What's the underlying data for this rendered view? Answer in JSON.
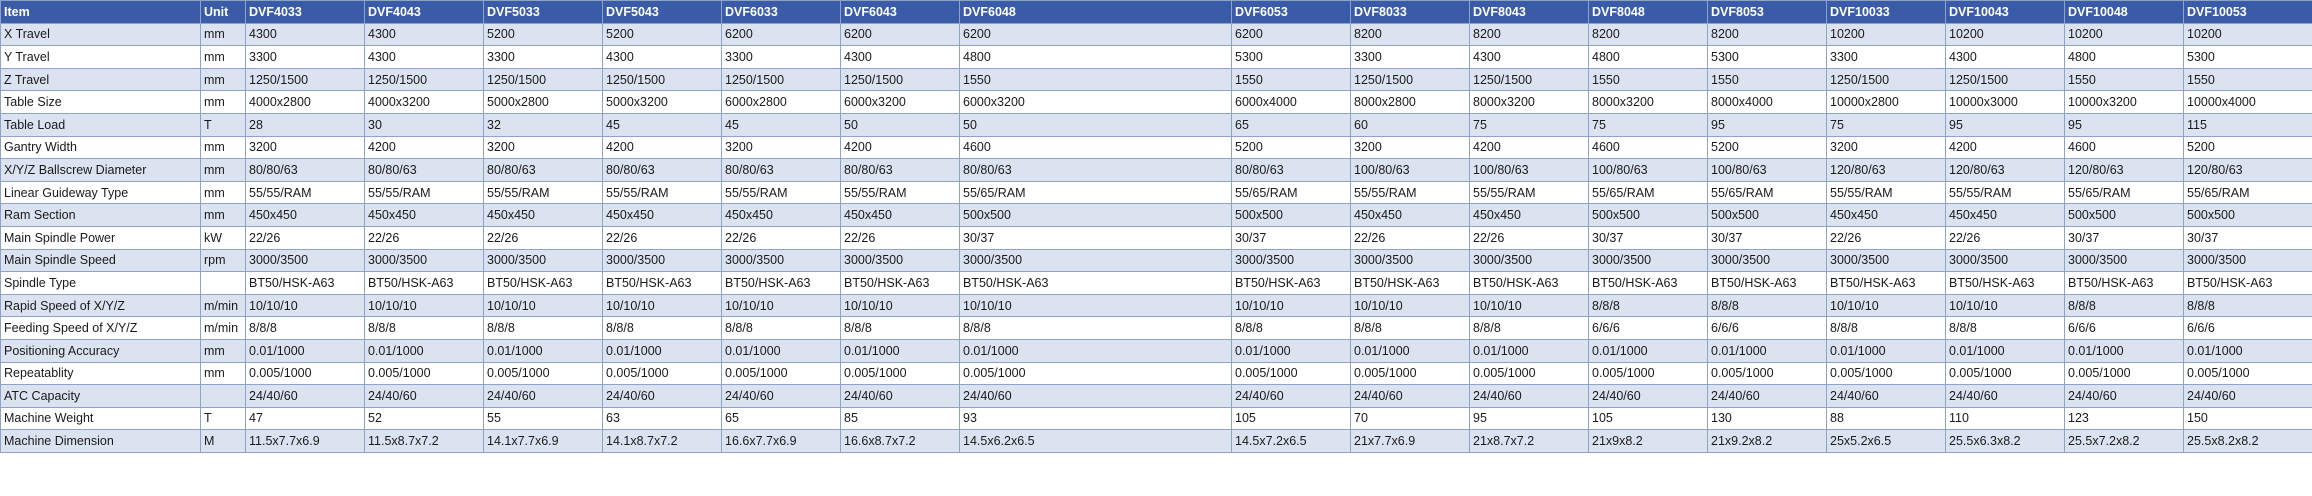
{
  "table": {
    "header": [
      "Item",
      "Unit",
      "DVF4033",
      "DVF4043",
      "DVF5033",
      "DVF5043",
      "DVF6033",
      "DVF6043",
      "DVF6048",
      "DVF6053",
      "DVF8033",
      "DVF8043",
      "DVF8048",
      "DVF8053",
      "DVF10033",
      "DVF10043",
      "DVF10048",
      "DVF10053"
    ],
    "rows": [
      [
        "X Travel",
        "mm",
        "4300",
        "4300",
        "5200",
        "5200",
        "6200",
        "6200",
        "6200",
        "6200",
        "8200",
        "8200",
        "8200",
        "8200",
        "10200",
        "10200",
        "10200",
        "10200"
      ],
      [
        "Y Travel",
        "mm",
        "3300",
        "4300",
        "3300",
        "4300",
        "3300",
        "4300",
        "4800",
        "5300",
        "3300",
        "4300",
        "4800",
        "5300",
        "3300",
        "4300",
        "4800",
        "5300"
      ],
      [
        "Z Travel",
        "mm",
        "1250/1500",
        "1250/1500",
        "1250/1500",
        "1250/1500",
        "1250/1500",
        "1250/1500",
        "1550",
        "1550",
        "1250/1500",
        "1250/1500",
        "1550",
        "1550",
        "1250/1500",
        "1250/1500",
        "1550",
        "1550"
      ],
      [
        "Table Size",
        "mm",
        "4000x2800",
        "4000x3200",
        "5000x2800",
        "5000x3200",
        "6000x2800",
        "6000x3200",
        "6000x3200",
        "6000x4000",
        "8000x2800",
        "8000x3200",
        "8000x3200",
        "8000x4000",
        "10000x2800",
        "10000x3000",
        "10000x3200",
        "10000x4000"
      ],
      [
        "Table Load",
        "T",
        "28",
        "30",
        "32",
        "45",
        "45",
        "50",
        "50",
        "65",
        "60",
        "75",
        "75",
        "95",
        "75",
        "95",
        "95",
        "115"
      ],
      [
        "Gantry Width",
        "mm",
        "3200",
        "4200",
        "3200",
        "4200",
        "3200",
        "4200",
        "4600",
        "5200",
        "3200",
        "4200",
        "4600",
        "5200",
        "3200",
        "4200",
        "4600",
        "5200"
      ],
      [
        "X/Y/Z Ballscrew Diameter",
        "mm",
        "80/80/63",
        "80/80/63",
        "80/80/63",
        "80/80/63",
        "80/80/63",
        "80/80/63",
        "80/80/63",
        "80/80/63",
        "100/80/63",
        "100/80/63",
        "100/80/63",
        "100/80/63",
        "120/80/63",
        "120/80/63",
        "120/80/63",
        "120/80/63"
      ],
      [
        "Linear Guideway Type",
        "mm",
        "55/55/RAM",
        "55/55/RAM",
        "55/55/RAM",
        "55/55/RAM",
        "55/55/RAM",
        "55/55/RAM",
        "55/65/RAM",
        "55/65/RAM",
        "55/55/RAM",
        "55/55/RAM",
        "55/65/RAM",
        "55/65/RAM",
        "55/55/RAM",
        "55/55/RAM",
        "55/65/RAM",
        "55/65/RAM"
      ],
      [
        "Ram Section",
        "mm",
        "450x450",
        "450x450",
        "450x450",
        "450x450",
        "450x450",
        "450x450",
        "500x500",
        "500x500",
        "450x450",
        "450x450",
        "500x500",
        "500x500",
        "450x450",
        "450x450",
        "500x500",
        "500x500"
      ],
      [
        "Main Spindle Power",
        "kW",
        "22/26",
        "22/26",
        "22/26",
        "22/26",
        "22/26",
        "22/26",
        "30/37",
        "30/37",
        "22/26",
        "22/26",
        "30/37",
        "30/37",
        "22/26",
        "22/26",
        "30/37",
        "30/37"
      ],
      [
        "Main Spindle Speed",
        "rpm",
        "3000/3500",
        "3000/3500",
        "3000/3500",
        "3000/3500",
        "3000/3500",
        "3000/3500",
        "3000/3500",
        "3000/3500",
        "3000/3500",
        "3000/3500",
        "3000/3500",
        "3000/3500",
        "3000/3500",
        "3000/3500",
        "3000/3500",
        "3000/3500"
      ],
      [
        "Spindle Type",
        null,
        "BT50/HSK-A63",
        "BT50/HSK-A63",
        "BT50/HSK-A63",
        "BT50/HSK-A63",
        "BT50/HSK-A63",
        "BT50/HSK-A63",
        "BT50/HSK-A63",
        "BT50/HSK-A63",
        "BT50/HSK-A63",
        "BT50/HSK-A63",
        "BT50/HSK-A63",
        "BT50/HSK-A63",
        "BT50/HSK-A63",
        "BT50/HSK-A63",
        "BT50/HSK-A63",
        "BT50/HSK-A63"
      ],
      [
        "Rapid Speed of X/Y/Z",
        "m/min",
        "10/10/10",
        "10/10/10",
        "10/10/10",
        "10/10/10",
        "10/10/10",
        "10/10/10",
        "10/10/10",
        "10/10/10",
        "10/10/10",
        "10/10/10",
        "8/8/8",
        "8/8/8",
        "10/10/10",
        "10/10/10",
        "8/8/8",
        "8/8/8"
      ],
      [
        "Feeding Speed of X/Y/Z",
        "m/min",
        "8/8/8",
        "8/8/8",
        "8/8/8",
        "8/8/8",
        "8/8/8",
        "8/8/8",
        "8/8/8",
        "8/8/8",
        "8/8/8",
        "8/8/8",
        "6/6/6",
        "6/6/6",
        "8/8/8",
        "8/8/8",
        "6/6/6",
        "6/6/6"
      ],
      [
        "Positioning Accuracy",
        "mm",
        "0.01/1000",
        "0.01/1000",
        "0.01/1000",
        "0.01/1000",
        "0.01/1000",
        "0.01/1000",
        "0.01/1000",
        "0.01/1000",
        "0.01/1000",
        "0.01/1000",
        "0.01/1000",
        "0.01/1000",
        "0.01/1000",
        "0.01/1000",
        "0.01/1000",
        "0.01/1000"
      ],
      [
        "Repeatablity",
        "mm",
        "0.005/1000",
        "0.005/1000",
        "0.005/1000",
        "0.005/1000",
        "0.005/1000",
        "0.005/1000",
        "0.005/1000",
        "0.005/1000",
        "0.005/1000",
        "0.005/1000",
        "0.005/1000",
        "0.005/1000",
        "0.005/1000",
        "0.005/1000",
        "0.005/1000",
        "0.005/1000"
      ],
      [
        "ATC Capacity",
        null,
        "24/40/60",
        "24/40/60",
        "24/40/60",
        "24/40/60",
        "24/40/60",
        "24/40/60",
        "24/40/60",
        "24/40/60",
        "24/40/60",
        "24/40/60",
        "24/40/60",
        "24/40/60",
        "24/40/60",
        "24/40/60",
        "24/40/60",
        "24/40/60"
      ],
      [
        "Machine Weight",
        "T",
        "47",
        "52",
        "55",
        "63",
        "65",
        "85",
        "93",
        "105",
        "70",
        "95",
        "105",
        "130",
        "88",
        "110",
        "123",
        "150"
      ],
      [
        "Machine Dimension",
        "M",
        "11.5x7.7x6.9",
        "11.5x8.7x7.2",
        "14.1x7.7x6.9",
        "14.1x8.7x7.2",
        "16.6x7.7x6.9",
        "16.6x8.7x7.2",
        "14.5x6.2x6.5",
        "14.5x7.2x6.5",
        "21x7.7x6.9",
        "21x8.7x7.2",
        "21x9x8.2",
        "21x9.2x8.2",
        "25x5.2x6.5",
        "25.5x6.3x8.2",
        "25.5x7.2x8.2",
        "25.5x8.2x8.2"
      ]
    ]
  }
}
